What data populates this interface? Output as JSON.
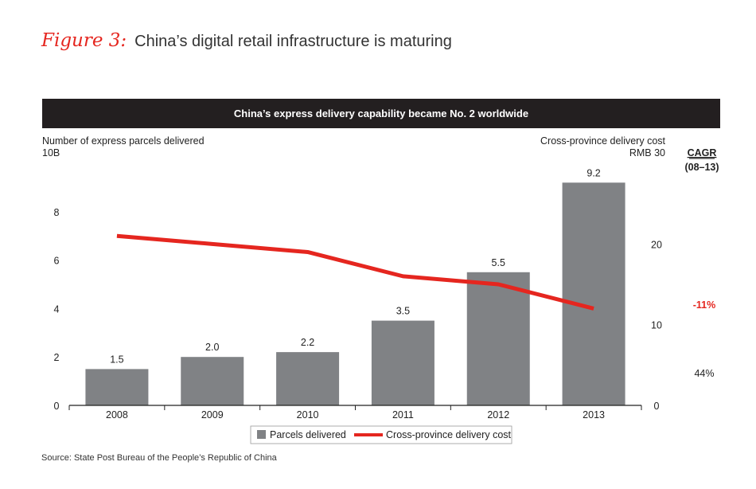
{
  "figure": {
    "label": "Figure 3:",
    "title": "China’s digital retail infrastructure is maturing",
    "source": "Source: State Post Bureau of the People’s Republic of China"
  },
  "chart_data": {
    "type": "bar+line",
    "title": "China’s express delivery capability became No. 2 worldwide",
    "categories": [
      "2008",
      "2009",
      "2010",
      "2011",
      "2012",
      "2013"
    ],
    "left_axis": {
      "label": "Number of express parcels delivered",
      "unit_label": "10B",
      "ylim": [
        0,
        10
      ],
      "ticks": [
        0,
        2,
        4,
        6,
        8
      ]
    },
    "right_axis": {
      "label": "Cross-province delivery cost",
      "unit_label": "RMB 30",
      "ylim": [
        0,
        30
      ],
      "ticks": [
        0,
        10,
        20
      ]
    },
    "series": [
      {
        "name": "Parcels delivered",
        "type": "bar",
        "axis": "left",
        "color": "#808285",
        "values": [
          1.5,
          2.0,
          2.2,
          3.5,
          5.5,
          9.2
        ],
        "value_labels": [
          "1.5",
          "2.0",
          "2.2",
          "3.5",
          "5.5",
          "9.2"
        ]
      },
      {
        "name": "Cross-province delivery cost",
        "type": "line",
        "axis": "right",
        "color": "#e5261f",
        "values": [
          21,
          20,
          19,
          16,
          15,
          12
        ]
      }
    ],
    "cagr": {
      "header": "CAGR",
      "period": "(08–13)",
      "cost_value": "-11%",
      "parcels_value": "44%"
    },
    "legend": {
      "placement": "bottom-center"
    }
  }
}
